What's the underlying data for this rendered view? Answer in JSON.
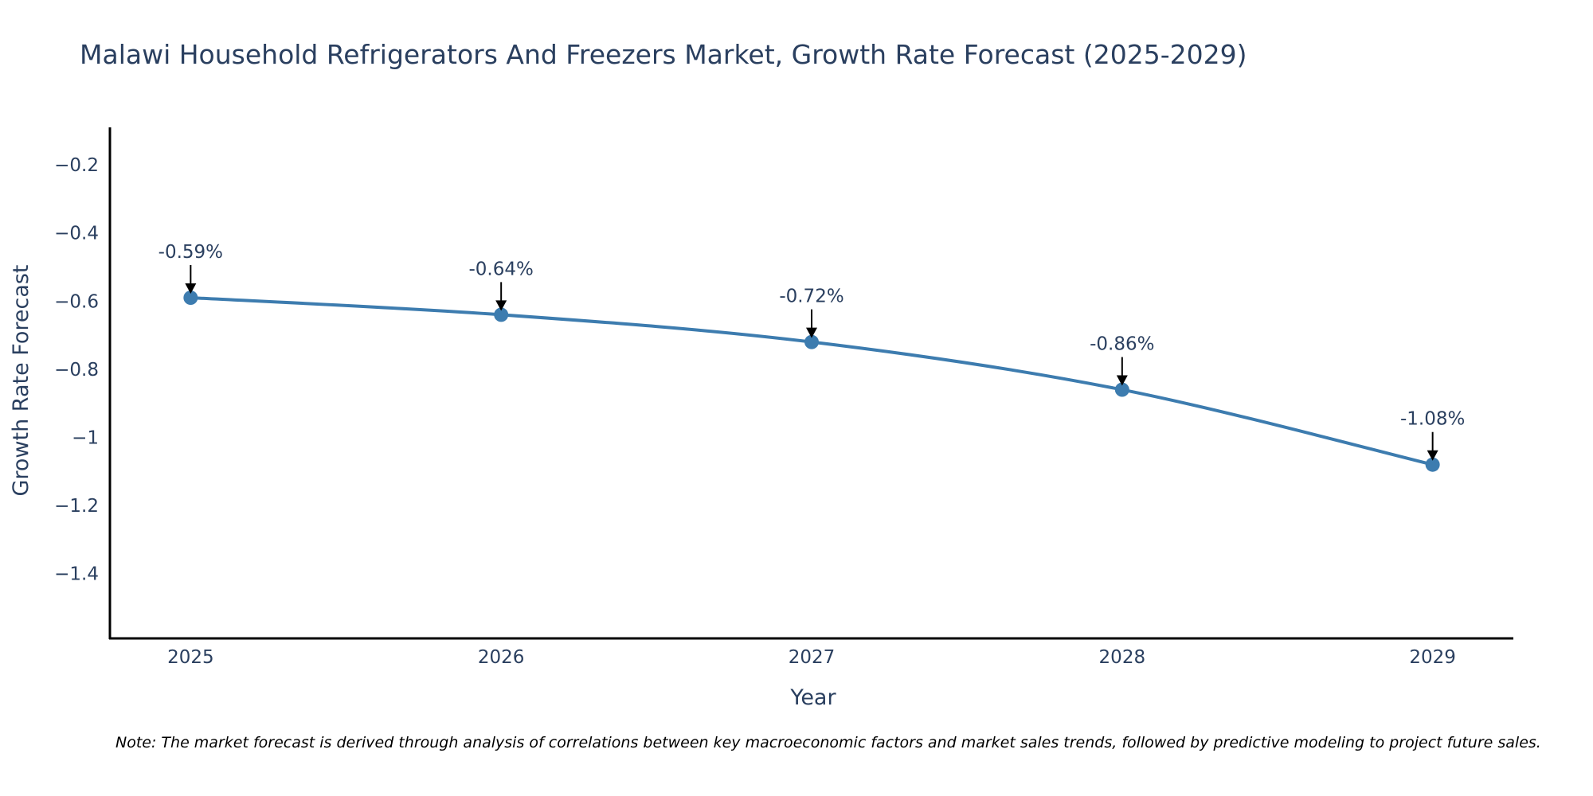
{
  "chart_data": {
    "type": "line",
    "title": "Malawi Household Refrigerators And Freezers Market, Growth Rate Forecast (2025-2029)",
    "xlabel": "Year",
    "ylabel": "Growth Rate Forecast",
    "x": [
      2025,
      2026,
      2027,
      2028,
      2029
    ],
    "categories": [
      "2025",
      "2026",
      "2027",
      "2028",
      "2029"
    ],
    "series": [
      {
        "name": "Growth Rate Forecast",
        "values": [
          -0.59,
          -0.64,
          -0.72,
          -0.86,
          -1.08
        ],
        "color": "#3d7caf"
      }
    ],
    "data_labels": [
      "-0.59%",
      "-0.64%",
      "-0.72%",
      "-0.86%",
      "-1.08%"
    ],
    "yticks": [
      -0.2,
      -0.4,
      -0.6,
      -0.8,
      -1,
      -1.2,
      -1.4
    ],
    "ytick_labels": [
      "−0.2",
      "−0.4",
      "−0.6",
      "−0.8",
      "−1",
      "−1.2",
      "−1.4"
    ],
    "ylim": [
      -1.59,
      -0.09
    ],
    "xlim": [
      2024.74,
      2029.26
    ],
    "grid": false,
    "note": "Note: The market forecast is derived through analysis of correlations between key macroeconomic factors and market sales trends, followed by predictive modeling to project future sales."
  }
}
